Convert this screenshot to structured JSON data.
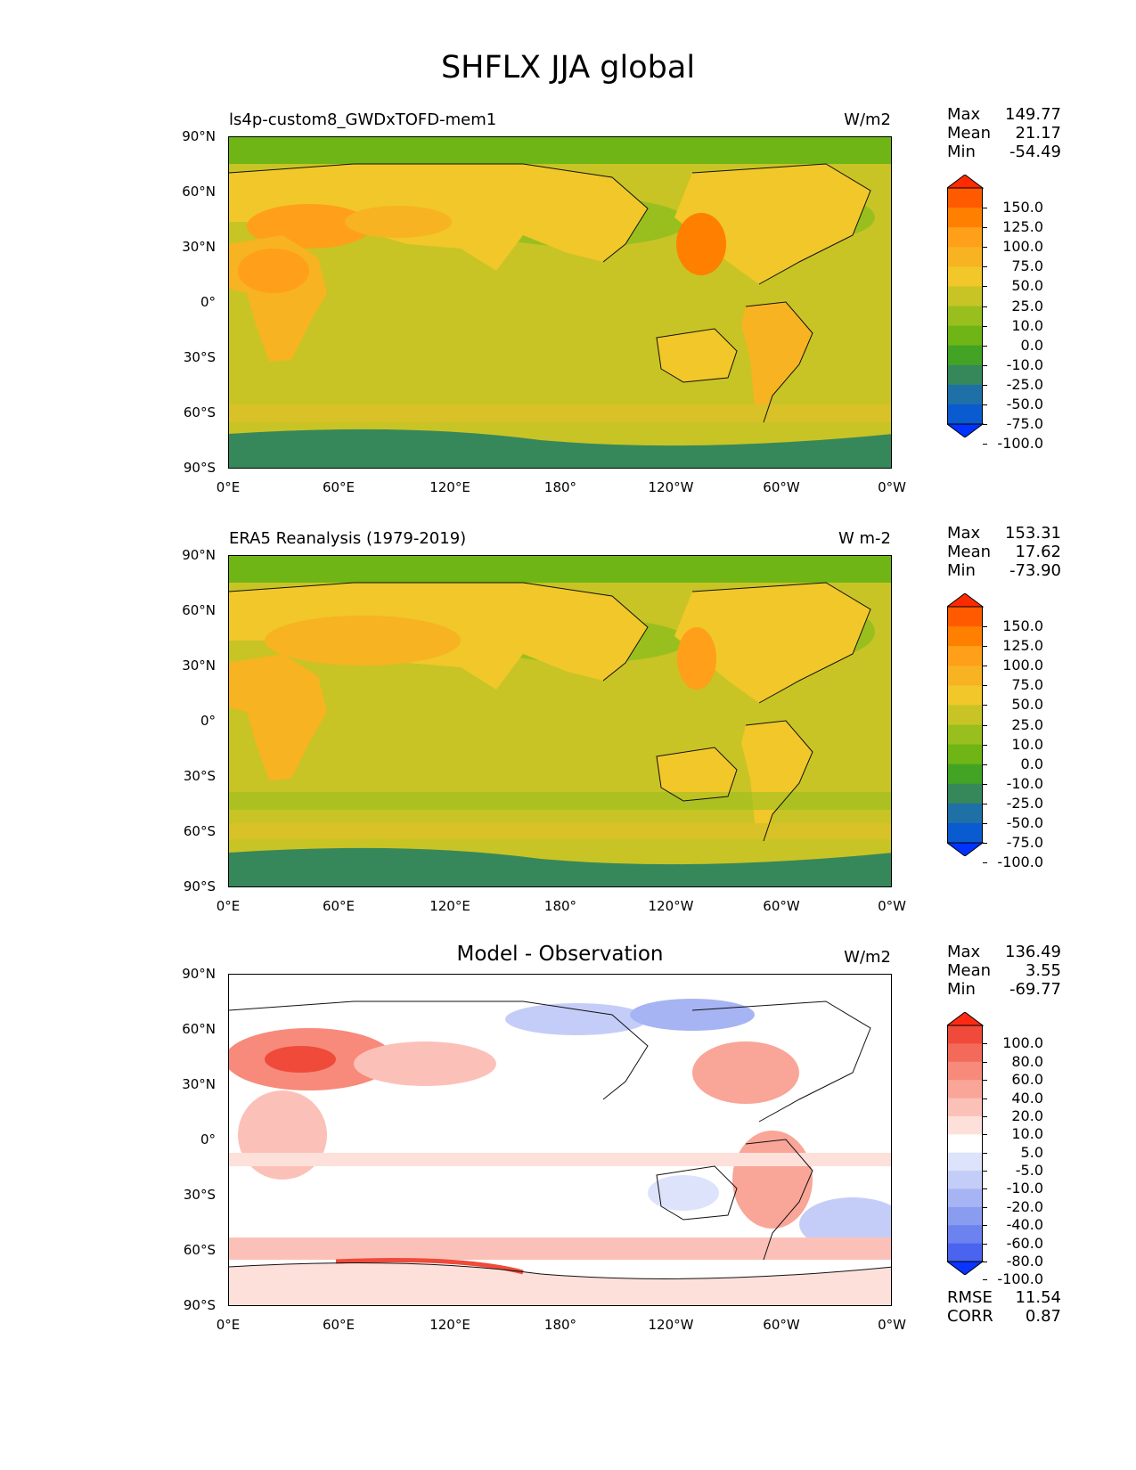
{
  "figure": {
    "title": "SHFLX JJA global"
  },
  "axes": {
    "y_ticks": [
      "90°N",
      "60°N",
      "30°N",
      "0°",
      "30°S",
      "60°S",
      "90°S"
    ],
    "x_ticks": [
      "0°E",
      "60°E",
      "120°E",
      "180°",
      "120°W",
      "60°W",
      "0°W"
    ]
  },
  "panels": [
    {
      "id": "model",
      "title": "ls4p-custom8_GWDxTOFD-mem1",
      "units": "W/m2",
      "stats": {
        "max_label": "Max",
        "max": "149.77",
        "mean_label": "Mean",
        "mean": "21.17",
        "min_label": "Min",
        "min": "-54.49"
      },
      "colorbar": {
        "labels": [
          "150.0",
          "125.0",
          "100.0",
          "75.0",
          "50.0",
          "25.0",
          "10.0",
          "0.0",
          "-10.0",
          "-25.0",
          "-50.0",
          "-75.0",
          "-100.0"
        ],
        "colors": [
          "#ff2b00",
          "#ff5a00",
          "#ff7f00",
          "#ff9f1a",
          "#f7b321",
          "#f1c72a",
          "#c8c425",
          "#99bf1f",
          "#6fb515",
          "#43a325",
          "#36885a",
          "#1e70a6",
          "#0a5ad0",
          "#0033ff"
        ]
      }
    },
    {
      "id": "obs",
      "title": "ERA5 Reanalysis (1979-2019)",
      "units": "W m-2",
      "stats": {
        "max_label": "Max",
        "max": "153.31",
        "mean_label": "Mean",
        "mean": "17.62",
        "min_label": "Min",
        "min": "-73.90"
      },
      "colorbar": {
        "labels": [
          "150.0",
          "125.0",
          "100.0",
          "75.0",
          "50.0",
          "25.0",
          "10.0",
          "0.0",
          "-10.0",
          "-25.0",
          "-50.0",
          "-75.0",
          "-100.0"
        ],
        "colors": [
          "#ff2b00",
          "#ff5a00",
          "#ff7f00",
          "#ff9f1a",
          "#f7b321",
          "#f1c72a",
          "#c8c425",
          "#99bf1f",
          "#6fb515",
          "#43a325",
          "#36885a",
          "#1e70a6",
          "#0a5ad0",
          "#0033ff"
        ]
      }
    },
    {
      "id": "diff",
      "title": "Model - Observation",
      "units": "W/m2",
      "stats": {
        "max_label": "Max",
        "max": "136.49",
        "mean_label": "Mean",
        "mean": "3.55",
        "min_label": "Min",
        "min": "-69.77"
      },
      "extra": {
        "rmse_label": "RMSE",
        "rmse": "11.54",
        "corr_label": "CORR",
        "corr": "0.87"
      },
      "colorbar": {
        "labels": [
          "100.0",
          "80.0",
          "60.0",
          "40.0",
          "20.0",
          "10.0",
          "5.0",
          "-5.0",
          "-10.0",
          "-20.0",
          "-40.0",
          "-60.0",
          "-80.0",
          "-100.0"
        ],
        "colors": [
          "#ff2a14",
          "#f04a3a",
          "#f46a5a",
          "#f78a7a",
          "#f9a598",
          "#fbc1b8",
          "#fde0da",
          "#ffffff",
          "#dde3fb",
          "#c4cdf8",
          "#a6b4f3",
          "#8a9cf0",
          "#6c82ee",
          "#4a64f0",
          "#0a34ff"
        ]
      }
    }
  ]
}
